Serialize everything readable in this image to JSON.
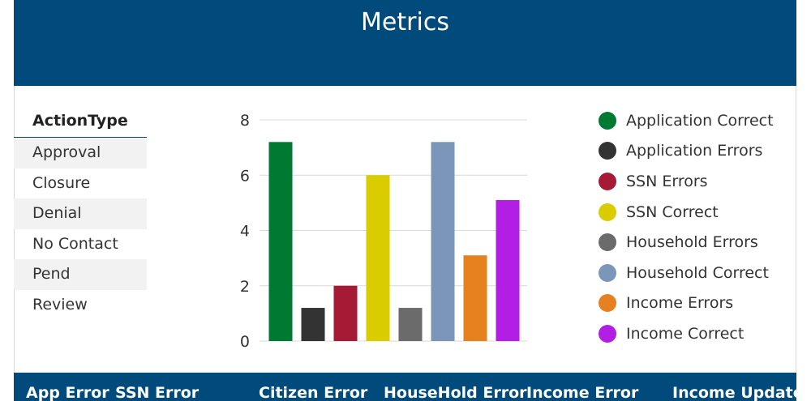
{
  "header": {
    "title": "Metrics"
  },
  "slicer": {
    "title": "ActionType",
    "items": [
      "Approval",
      "Closure",
      "Denial",
      "No Contact",
      "Pend",
      "Review"
    ]
  },
  "chart_data": {
    "type": "bar",
    "categories": [
      "Application Correct",
      "Application Errors",
      "SSN Errors",
      "SSN Correct",
      "Household Errors",
      "Household Correct",
      "Income Errors",
      "Income Correct"
    ],
    "values": [
      7.2,
      1.2,
      2,
      6,
      1.2,
      7.2,
      3.1,
      5.1
    ],
    "colors": [
      "#007a33",
      "#333333",
      "#a51a34",
      "#d9cc00",
      "#6b6b6b",
      "#7b96b9",
      "#e5821f",
      "#b21ee3"
    ],
    "yticks": [
      "0",
      "2",
      "4",
      "6",
      "8"
    ],
    "ylim": [
      0,
      8
    ],
    "grid": true,
    "legend": "right"
  },
  "footer": {
    "columns": [
      "App Error",
      "SSN Error",
      "Citizen Error",
      "HouseHold Error",
      "Income Error",
      "Income Updated"
    ]
  }
}
